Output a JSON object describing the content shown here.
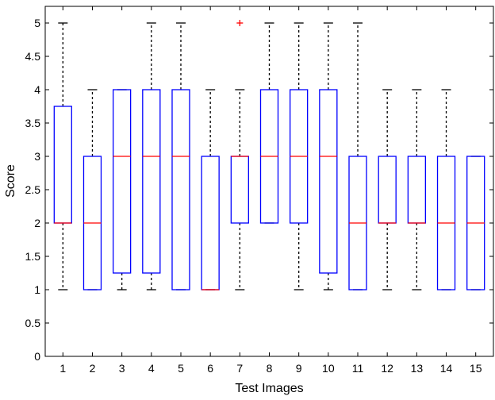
{
  "chart_data": {
    "type": "box",
    "xlabel": "Test Images",
    "ylabel": "Score",
    "ylim": [
      0,
      5.25
    ],
    "yticks": [
      "0",
      "0.5",
      "1",
      "1.5",
      "2",
      "2.5",
      "3",
      "3.5",
      "4",
      "4.5",
      "5"
    ],
    "categories": [
      "1",
      "2",
      "3",
      "4",
      "5",
      "6",
      "7",
      "8",
      "9",
      "10",
      "11",
      "12",
      "13",
      "14",
      "15"
    ],
    "box_color": "#0000ff",
    "median_color": "#ff0000",
    "outlier_color": "#ff0000",
    "whisker_color": "#000000",
    "boxes": [
      {
        "min": 1,
        "q1": 2,
        "median": 2,
        "q3": 3.75,
        "max": 5,
        "outliers": []
      },
      {
        "min": 1,
        "q1": 1,
        "median": 2,
        "q3": 3,
        "max": 4,
        "outliers": []
      },
      {
        "min": 1,
        "q1": 1.25,
        "median": 3,
        "q3": 4,
        "max": 4,
        "outliers": []
      },
      {
        "min": 1,
        "q1": 1.25,
        "median": 3,
        "q3": 4,
        "max": 5,
        "outliers": []
      },
      {
        "min": 1,
        "q1": 1,
        "median": 3,
        "q3": 4,
        "max": 5,
        "outliers": []
      },
      {
        "min": 1,
        "q1": 1,
        "median": 1,
        "q3": 3,
        "max": 4,
        "outliers": []
      },
      {
        "min": 1,
        "q1": 2,
        "median": 3,
        "q3": 3,
        "max": 4,
        "outliers": [
          5
        ]
      },
      {
        "min": 2,
        "q1": 2,
        "median": 3,
        "q3": 4,
        "max": 5,
        "outliers": []
      },
      {
        "min": 1,
        "q1": 2,
        "median": 3,
        "q3": 4,
        "max": 5,
        "outliers": []
      },
      {
        "min": 1,
        "q1": 1.25,
        "median": 3,
        "q3": 4,
        "max": 5,
        "outliers": []
      },
      {
        "min": 1,
        "q1": 1,
        "median": 2,
        "q3": 3,
        "max": 5,
        "outliers": []
      },
      {
        "min": 1,
        "q1": 2,
        "median": 2,
        "q3": 3,
        "max": 4,
        "outliers": []
      },
      {
        "min": 1,
        "q1": 2,
        "median": 2,
        "q3": 3,
        "max": 4,
        "outliers": []
      },
      {
        "min": 1,
        "q1": 1,
        "median": 2,
        "q3": 3,
        "max": 4,
        "outliers": []
      },
      {
        "min": 1,
        "q1": 1,
        "median": 2,
        "q3": 3,
        "max": 3,
        "outliers": []
      }
    ]
  }
}
